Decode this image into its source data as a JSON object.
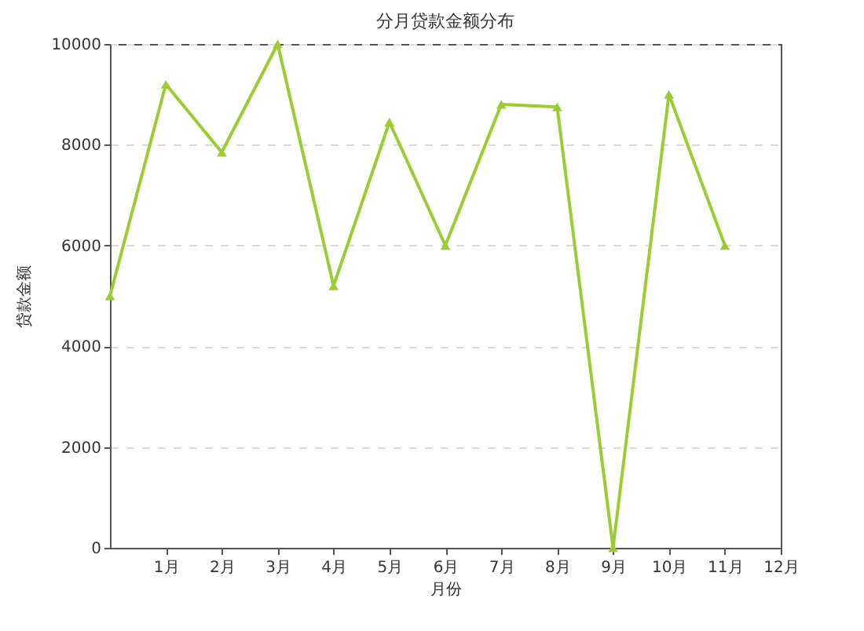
{
  "chart_data": {
    "type": "line",
    "title": "分月贷款金额分布",
    "xlabel": "月份",
    "ylabel": "贷款金额",
    "x": [
      0,
      1,
      2,
      3,
      4,
      5,
      6,
      7,
      8,
      9,
      10,
      11
    ],
    "series": [
      {
        "color": "#9acd32",
        "values": [
          5000,
          9200,
          7850,
          10000,
          5200,
          8450,
          6000,
          8800,
          8750,
          0,
          9000,
          6000
        ]
      }
    ],
    "xlim": [
      0,
      12
    ],
    "xticks": [
      {
        "value": 1,
        "label": "1月"
      },
      {
        "value": 2,
        "label": "2月"
      },
      {
        "value": 3,
        "label": "3月"
      },
      {
        "value": 4,
        "label": "4月"
      },
      {
        "value": 5,
        "label": "5月"
      },
      {
        "value": 6,
        "label": "6月"
      },
      {
        "value": 7,
        "label": "7月"
      },
      {
        "value": 8,
        "label": "8月"
      },
      {
        "value": 9,
        "label": "9月"
      },
      {
        "value": 10,
        "label": "10月"
      },
      {
        "value": 11,
        "label": "11月"
      },
      {
        "value": 12,
        "label": "12月"
      }
    ],
    "ylim": [
      0,
      10000
    ],
    "yticks": [
      0,
      2000,
      4000,
      6000,
      8000,
      10000
    ],
    "grid": "y",
    "marker": "triangle",
    "line_style": "solid",
    "legend": false
  }
}
